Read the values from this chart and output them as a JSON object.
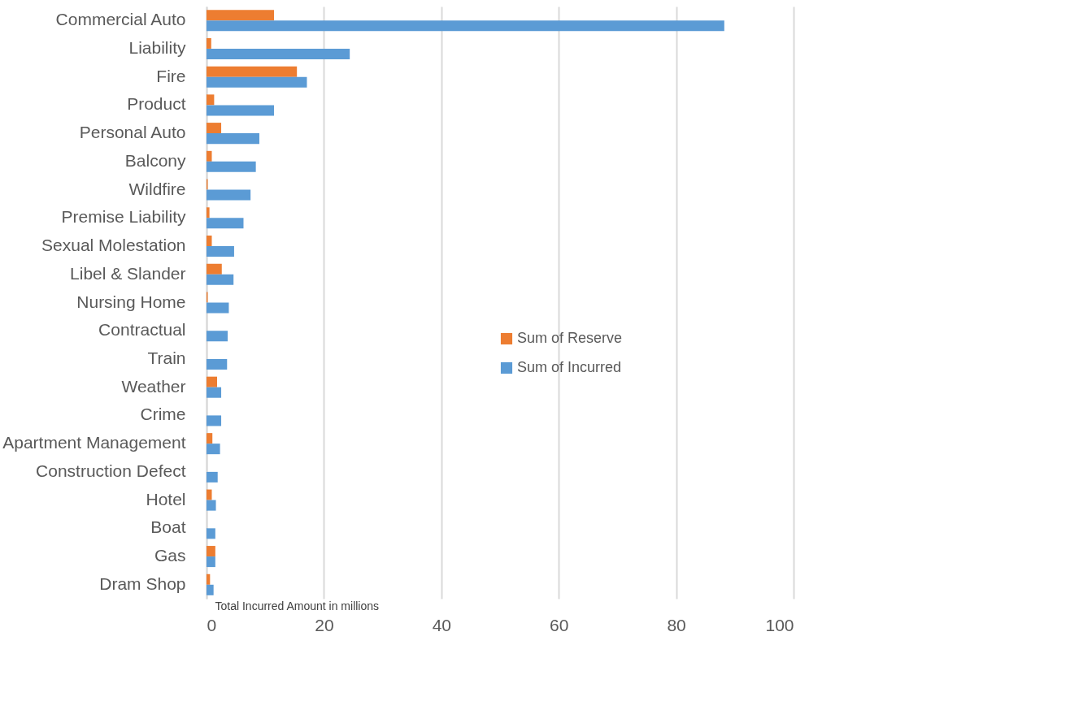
{
  "chart_data": {
    "type": "bar",
    "orientation": "horizontal",
    "xlabel": "Total Incurred Amount in millions",
    "categories": [
      "Commercial Auto",
      "Liability",
      "Fire",
      "Product",
      "Personal Auto",
      "Balcony",
      "Wildfire",
      "Premise Liability",
      "Sexual Molestation",
      "Libel & Slander",
      "Nursing Home",
      "Contractual",
      "Train",
      "Weather",
      "Crime",
      "Apartment Management",
      "Construction Defect",
      "Hotel",
      "Boat",
      "Gas",
      "Dram Shop"
    ],
    "series": [
      {
        "name": "Sum of Reserve",
        "color": "#ed7d31",
        "values": [
          11.5,
          0.8,
          15.4,
          1.3,
          2.5,
          0.9,
          0.2,
          0.5,
          0.9,
          2.6,
          0.2,
          null,
          null,
          1.8,
          null,
          1.0,
          null,
          0.9,
          null,
          1.5,
          0.6
        ]
      },
      {
        "name": "Sum of Incurred",
        "color": "#5b9bd5",
        "values": [
          88.2,
          24.4,
          17.1,
          11.5,
          9.0,
          8.4,
          7.5,
          6.3,
          4.7,
          4.6,
          3.8,
          3.6,
          3.5,
          2.5,
          2.5,
          2.3,
          1.9,
          1.6,
          1.5,
          1.5,
          1.2
        ]
      }
    ],
    "xlim": [
      0,
      100
    ],
    "xticks": [
      0,
      20,
      40,
      60,
      80,
      100
    ],
    "grid": "x",
    "legend": "right"
  }
}
